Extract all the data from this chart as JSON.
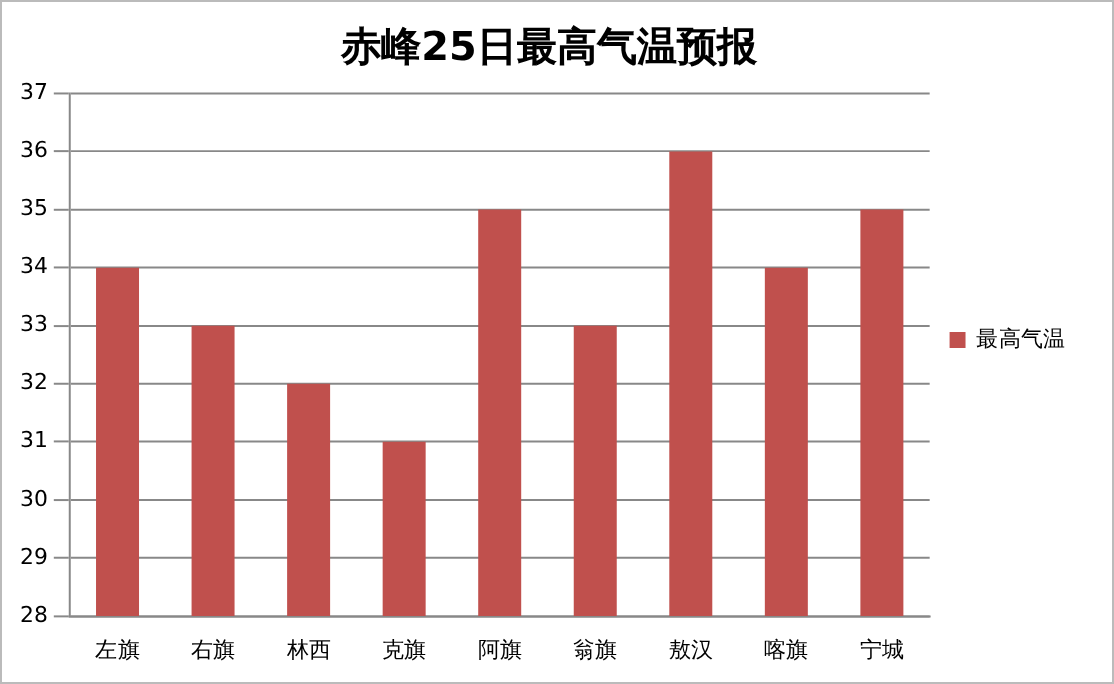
{
  "chart_data": {
    "type": "bar",
    "title": "赤峰25日最高气温预报",
    "categories": [
      "左旗",
      "右旗",
      "林西",
      "克旗",
      "阿旗",
      "翁旗",
      "敖汉",
      "喀旗",
      "宁城"
    ],
    "series": [
      {
        "name": "最高气温",
        "color": "#c0504d",
        "values": [
          34,
          33,
          32,
          31,
          35,
          33,
          36,
          34,
          35
        ]
      }
    ],
    "ylim": [
      28,
      37
    ],
    "yticks": [
      28,
      29,
      30,
      31,
      32,
      33,
      34,
      35,
      36,
      37
    ],
    "grid": "y",
    "legend": "right"
  }
}
